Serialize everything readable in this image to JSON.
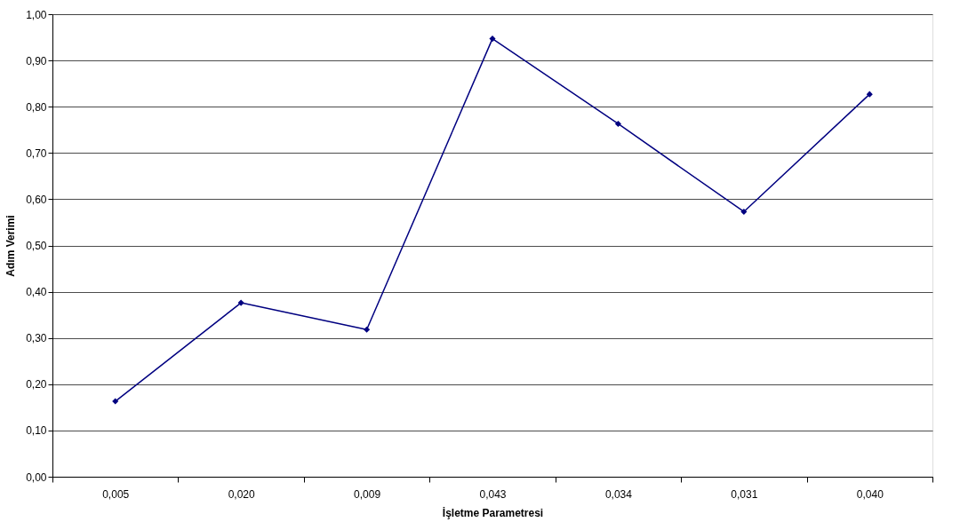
{
  "chart_data": {
    "type": "line",
    "xlabel": "İşletme Parametresi",
    "ylabel": "Adım Verimi",
    "categories": [
      "0,005",
      "0,020",
      "0,009",
      "0,043",
      "0,034",
      "0,031",
      "0,040"
    ],
    "series": [
      {
        "color": "#000080",
        "values": [
          0.163,
          0.376,
          0.318,
          0.947,
          0.763,
          0.573,
          0.827
        ]
      }
    ],
    "ylim": [
      0,
      1
    ],
    "yticks": [
      {
        "value": 0,
        "label": "0,00"
      },
      {
        "value": 0.1,
        "label": "0,10"
      },
      {
        "value": 0.2,
        "label": "0,20"
      },
      {
        "value": 0.3,
        "label": "0,30"
      },
      {
        "value": 0.4,
        "label": "0,40"
      },
      {
        "value": 0.5,
        "label": "0,50"
      },
      {
        "value": 0.6,
        "label": "0,60"
      },
      {
        "value": 0.7,
        "label": "0,70"
      },
      {
        "value": 0.8,
        "label": "0,80"
      },
      {
        "value": 0.9,
        "label": "0,90"
      },
      {
        "value": 1,
        "label": "1,00"
      }
    ],
    "grid": "y",
    "marker": "diamond",
    "line_style": "solid"
  }
}
